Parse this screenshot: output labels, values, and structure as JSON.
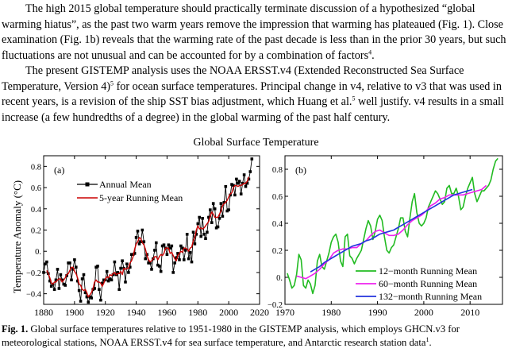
{
  "paragraphs": {
    "p1": {
      "pre": "The high 2015 global temperature should practically terminate discussion of a hypothesized “global warming hiatus”, as the past two warm years remove the impression that warming has plateaued (Fig. 1). Close examination (Fig. 1b) reveals that the warming rate of the past decade is less than in the prior 30 years, but such fluctuations are not unusual and can be accounted for by a combination of factors",
      "ref": "4",
      "post": "."
    },
    "p2": {
      "pre": "The present GISTEMP analysis uses the NOAA ERSST.v4 (Extended Reconstructed Sea Surface Temperature, Version 4)",
      "ref1": "5",
      "mid": " for ocean surface temperatures.  Principal change in v4, relative to v3 that was used in recent years, is a revision of the ship SST bias adjustment, which Huang et al.",
      "ref2": "5",
      "post": " well justify.  v4 results in a small increase (a few hundredths of a degree) in the global warming of the past half century."
    }
  },
  "figure": {
    "title": "Global Surface Temperature",
    "ylabel": "Temperature Anomaly (°C)",
    "panel_a_label": "(a)",
    "panel_b_label": "(b)"
  },
  "caption": {
    "label": "Fig. 1.",
    "text": " Global surface temperatures relative to 1951-1980 in the GISTEMP analysis, which employs GHCN.v3 for meteorological stations, NOAA ERSST.v4 for sea surface temperature, and Antarctic research station data",
    "ref": "1",
    "post": "."
  },
  "chart_data": [
    {
      "type": "line",
      "panel": "(a)",
      "title": "Global Surface Temperature",
      "ylabel": "Temperature Anomaly (°C)",
      "xlim": [
        1880,
        2020
      ],
      "ylim": [
        -0.5,
        0.9
      ],
      "x_ticks": [
        1880,
        1900,
        1920,
        1940,
        1960,
        1980,
        2000,
        2020
      ],
      "y_ticks": [
        -0.4,
        -0.2,
        0.0,
        0.2,
        0.4,
        0.6,
        0.8
      ],
      "y_tick_labels": [
        "−0.4",
        "−0.2",
        "0.",
        "0.2",
        "0.4",
        "0.6",
        "0.8"
      ],
      "legend_position": "top-left",
      "colors": {
        "annual": "#000000",
        "running5": "#cc0000"
      },
      "series": [
        {
          "name": "Annual Mean",
          "marker": "square",
          "x": [
            1880,
            1881,
            1882,
            1883,
            1884,
            1885,
            1886,
            1887,
            1888,
            1889,
            1890,
            1891,
            1892,
            1893,
            1894,
            1895,
            1896,
            1897,
            1898,
            1899,
            1900,
            1901,
            1902,
            1903,
            1904,
            1905,
            1906,
            1907,
            1908,
            1909,
            1910,
            1911,
            1912,
            1913,
            1914,
            1915,
            1916,
            1917,
            1918,
            1919,
            1920,
            1921,
            1922,
            1923,
            1924,
            1925,
            1926,
            1927,
            1928,
            1929,
            1930,
            1931,
            1932,
            1933,
            1934,
            1935,
            1936,
            1937,
            1938,
            1939,
            1940,
            1941,
            1942,
            1943,
            1944,
            1945,
            1946,
            1947,
            1948,
            1949,
            1950,
            1951,
            1952,
            1953,
            1954,
            1955,
            1956,
            1957,
            1958,
            1959,
            1960,
            1961,
            1962,
            1963,
            1964,
            1965,
            1966,
            1967,
            1968,
            1969,
            1970,
            1971,
            1972,
            1973,
            1974,
            1975,
            1976,
            1977,
            1978,
            1979,
            1980,
            1981,
            1982,
            1983,
            1984,
            1985,
            1986,
            1987,
            1988,
            1989,
            1990,
            1991,
            1992,
            1993,
            1994,
            1995,
            1996,
            1997,
            1998,
            1999,
            2000,
            2001,
            2002,
            2003,
            2004,
            2005,
            2006,
            2007,
            2008,
            2009,
            2010,
            2011,
            2012,
            2013,
            2014,
            2015
          ],
          "values": [
            -0.2,
            -0.12,
            -0.1,
            -0.21,
            -0.28,
            -0.33,
            -0.31,
            -0.36,
            -0.27,
            -0.17,
            -0.35,
            -0.22,
            -0.27,
            -0.31,
            -0.32,
            -0.23,
            -0.11,
            -0.11,
            -0.27,
            -0.17,
            -0.08,
            -0.15,
            -0.28,
            -0.37,
            -0.47,
            -0.26,
            -0.22,
            -0.39,
            -0.43,
            -0.48,
            -0.43,
            -0.44,
            -0.36,
            -0.35,
            -0.15,
            -0.14,
            -0.36,
            -0.46,
            -0.3,
            -0.27,
            -0.27,
            -0.19,
            -0.28,
            -0.26,
            -0.27,
            -0.22,
            -0.1,
            -0.22,
            -0.2,
            -0.36,
            -0.16,
            -0.09,
            -0.16,
            -0.29,
            -0.12,
            -0.2,
            -0.15,
            -0.03,
            -0.03,
            -0.02,
            0.13,
            0.19,
            0.07,
            0.09,
            0.2,
            0.09,
            -0.07,
            -0.03,
            -0.11,
            -0.11,
            -0.17,
            -0.07,
            0.01,
            0.08,
            -0.13,
            -0.14,
            -0.19,
            0.05,
            0.06,
            0.03,
            -0.03,
            0.06,
            0.03,
            0.05,
            -0.2,
            -0.11,
            -0.06,
            -0.02,
            -0.08,
            0.05,
            0.03,
            -0.08,
            0.01,
            0.16,
            -0.07,
            -0.01,
            -0.1,
            0.18,
            0.07,
            0.16,
            0.26,
            0.32,
            0.14,
            0.31,
            0.16,
            0.12,
            0.18,
            0.32,
            0.39,
            0.27,
            0.45,
            0.4,
            0.22,
            0.23,
            0.31,
            0.45,
            0.33,
            0.46,
            0.61,
            0.38,
            0.39,
            0.53,
            0.63,
            0.62,
            0.53,
            0.68,
            0.64,
            0.66,
            0.54,
            0.64,
            0.72,
            0.61,
            0.64,
            0.68,
            0.75,
            0.87
          ]
        },
        {
          "name": "5-year Running Mean",
          "x": [
            1882,
            1883,
            1884,
            1885,
            1886,
            1887,
            1888,
            1889,
            1890,
            1891,
            1892,
            1893,
            1894,
            1895,
            1896,
            1897,
            1898,
            1899,
            1900,
            1901,
            1902,
            1903,
            1904,
            1905,
            1906,
            1907,
            1908,
            1909,
            1910,
            1911,
            1912,
            1913,
            1914,
            1915,
            1916,
            1917,
            1918,
            1919,
            1920,
            1921,
            1922,
            1923,
            1924,
            1925,
            1926,
            1927,
            1928,
            1929,
            1930,
            1931,
            1932,
            1933,
            1934,
            1935,
            1936,
            1937,
            1938,
            1939,
            1940,
            1941,
            1942,
            1943,
            1944,
            1945,
            1946,
            1947,
            1948,
            1949,
            1950,
            1951,
            1952,
            1953,
            1954,
            1955,
            1956,
            1957,
            1958,
            1959,
            1960,
            1961,
            1962,
            1963,
            1964,
            1965,
            1966,
            1967,
            1968,
            1969,
            1970,
            1971,
            1972,
            1973,
            1974,
            1975,
            1976,
            1977,
            1978,
            1979,
            1980,
            1981,
            1982,
            1983,
            1984,
            1985,
            1986,
            1987,
            1988,
            1989,
            1990,
            1991,
            1992,
            1993,
            1994,
            1995,
            1996,
            1997,
            1998,
            1999,
            2000,
            2001,
            2002,
            2003,
            2004,
            2005,
            2006,
            2007,
            2008,
            2009,
            2010,
            2011,
            2012,
            2013
          ],
          "values": [
            -0.18,
            -0.21,
            -0.25,
            -0.3,
            -0.31,
            -0.29,
            -0.29,
            -0.27,
            -0.26,
            -0.26,
            -0.29,
            -0.27,
            -0.25,
            -0.22,
            -0.21,
            -0.18,
            -0.15,
            -0.15,
            -0.19,
            -0.21,
            -0.25,
            -0.31,
            -0.32,
            -0.36,
            -0.37,
            -0.36,
            -0.39,
            -0.43,
            -0.41,
            -0.39,
            -0.35,
            -0.29,
            -0.27,
            -0.29,
            -0.29,
            -0.3,
            -0.33,
            -0.3,
            -0.26,
            -0.24,
            -0.25,
            -0.22,
            -0.23,
            -0.21,
            -0.2,
            -0.22,
            -0.21,
            -0.21,
            -0.19,
            -0.22,
            -0.16,
            -0.17,
            -0.16,
            -0.16,
            -0.11,
            -0.09,
            -0.05,
            0.02,
            0.07,
            0.09,
            0.13,
            0.12,
            0.08,
            0.06,
            0.02,
            -0.04,
            -0.08,
            -0.1,
            -0.09,
            -0.07,
            -0.05,
            -0.05,
            -0.08,
            -0.05,
            -0.03,
            -0.04,
            -0.02,
            0.03,
            0.03,
            0.03,
            -0.02,
            -0.01,
            -0.04,
            -0.07,
            -0.09,
            -0.04,
            -0.02,
            0.0,
            -0.01,
            0.03,
            0.03,
            0.02,
            -0.0,
            0.03,
            0.04,
            0.1,
            0.13,
            0.2,
            0.24,
            0.21,
            0.22,
            0.21,
            0.22,
            0.24,
            0.26,
            0.28,
            0.33,
            0.37,
            0.35,
            0.32,
            0.32,
            0.32,
            0.35,
            0.38,
            0.43,
            0.45,
            0.46,
            0.48,
            0.51,
            0.54,
            0.55,
            0.6,
            0.62,
            0.62,
            0.61,
            0.62,
            0.62,
            0.63,
            0.64,
            0.64,
            0.66,
            0.7
          ]
        }
      ]
    },
    {
      "type": "line",
      "panel": "(b)",
      "xlim": [
        1970,
        2017
      ],
      "ylim": [
        -0.2,
        0.9
      ],
      "x_ticks": [
        1970,
        1980,
        1990,
        2000,
        2010
      ],
      "x_tick_labels": [
        "1970",
        "1980",
        "1990",
        "2000",
        "2010"
      ],
      "y_ticks": [
        -0.2,
        0.0,
        0.2,
        0.4,
        0.6,
        0.8
      ],
      "y_tick_labels": [
        "−0.2",
        "0.",
        "0.2",
        "0.4",
        "0.6",
        "0.8"
      ],
      "legend_position": "bottom-right",
      "colors": {
        "m12": "#22bb22",
        "m60": "#ee22ee",
        "m132": "#2233dd"
      },
      "series": [
        {
          "name": "12−month Running Mean",
          "x": [
            1970.5,
            1971.0,
            1971.5,
            1972.0,
            1972.5,
            1973.0,
            1973.5,
            1974.0,
            1974.5,
            1975.0,
            1975.5,
            1976.0,
            1976.5,
            1977.0,
            1977.5,
            1978.0,
            1978.5,
            1979.0,
            1979.5,
            1980.0,
            1980.5,
            1981.0,
            1981.5,
            1982.0,
            1982.5,
            1983.0,
            1983.5,
            1984.0,
            1984.5,
            1985.0,
            1985.5,
            1986.0,
            1986.5,
            1987.0,
            1987.5,
            1988.0,
            1988.5,
            1989.0,
            1989.5,
            1990.0,
            1990.5,
            1991.0,
            1991.5,
            1992.0,
            1992.5,
            1993.0,
            1993.5,
            1994.0,
            1994.5,
            1995.0,
            1995.5,
            1996.0,
            1996.5,
            1997.0,
            1997.5,
            1998.0,
            1998.5,
            1999.0,
            1999.5,
            2000.0,
            2000.5,
            2001.0,
            2001.5,
            2002.0,
            2002.5,
            2003.0,
            2003.5,
            2004.0,
            2004.5,
            2005.0,
            2005.5,
            2006.0,
            2006.5,
            2007.0,
            2007.5,
            2008.0,
            2008.5,
            2009.0,
            2009.5,
            2010.0,
            2010.5,
            2011.0,
            2011.5,
            2012.0,
            2012.5,
            2013.0,
            2013.5,
            2014.0,
            2014.5,
            2015.0,
            2015.5,
            2016.0
          ],
          "values": [
            0.03,
            -0.02,
            -0.08,
            -0.06,
            0.02,
            0.17,
            0.13,
            -0.06,
            -0.08,
            -0.02,
            -0.05,
            -0.12,
            -0.06,
            0.12,
            0.17,
            0.08,
            0.06,
            0.12,
            0.18,
            0.26,
            0.3,
            0.32,
            0.26,
            0.12,
            0.08,
            0.3,
            0.32,
            0.16,
            0.14,
            0.1,
            0.14,
            0.17,
            0.2,
            0.28,
            0.36,
            0.42,
            0.38,
            0.28,
            0.34,
            0.43,
            0.46,
            0.42,
            0.3,
            0.2,
            0.18,
            0.22,
            0.24,
            0.3,
            0.36,
            0.44,
            0.44,
            0.34,
            0.3,
            0.44,
            0.56,
            0.62,
            0.48,
            0.4,
            0.38,
            0.4,
            0.44,
            0.52,
            0.56,
            0.6,
            0.64,
            0.62,
            0.58,
            0.54,
            0.56,
            0.66,
            0.68,
            0.62,
            0.62,
            0.66,
            0.6,
            0.5,
            0.52,
            0.6,
            0.66,
            0.7,
            0.74,
            0.62,
            0.56,
            0.6,
            0.64,
            0.64,
            0.66,
            0.68,
            0.72,
            0.8,
            0.86,
            0.88
          ]
        },
        {
          "name": "60−month Running Mean",
          "x": [
            1972.5,
            1973.5,
            1974.5,
            1975.5,
            1976.5,
            1977.5,
            1978.5,
            1979.5,
            1980.5,
            1981.5,
            1982.5,
            1983.5,
            1984.5,
            1985.5,
            1986.5,
            1987.5,
            1988.5,
            1989.5,
            1990.5,
            1991.5,
            1992.5,
            1993.5,
            1994.5,
            1995.5,
            1996.5,
            1997.5,
            1998.5,
            1999.5,
            2000.5,
            2001.5,
            2002.5,
            2003.5,
            2004.5,
            2005.5,
            2006.5,
            2007.5,
            2008.5,
            2009.5,
            2010.5,
            2011.5,
            2012.5,
            2013.5
          ],
          "values": [
            0.01,
            0.0,
            -0.01,
            0.01,
            0.03,
            0.06,
            0.1,
            0.13,
            0.18,
            0.2,
            0.21,
            0.21,
            0.22,
            0.22,
            0.25,
            0.27,
            0.31,
            0.34,
            0.35,
            0.33,
            0.31,
            0.31,
            0.32,
            0.35,
            0.39,
            0.42,
            0.44,
            0.46,
            0.49,
            0.53,
            0.55,
            0.58,
            0.59,
            0.61,
            0.61,
            0.61,
            0.61,
            0.62,
            0.63,
            0.64,
            0.65,
            0.68
          ]
        },
        {
          "name": "132−month Running Mean",
          "x": [
            1975.5,
            1976.5,
            1977.5,
            1978.5,
            1979.5,
            1980.5,
            1981.5,
            1982.5,
            1983.5,
            1984.5,
            1985.5,
            1986.5,
            1987.5,
            1988.5,
            1989.5,
            1990.5,
            1991.5,
            1992.5,
            1993.5,
            1994.5,
            1995.5,
            1996.5,
            1997.5,
            1998.5,
            1999.5,
            2000.5,
            2001.5,
            2002.5,
            2003.5,
            2004.5,
            2005.5,
            2006.5,
            2007.5,
            2008.5,
            2009.5,
            2010.5
          ],
          "values": [
            0.04,
            0.06,
            0.08,
            0.11,
            0.13,
            0.15,
            0.17,
            0.19,
            0.21,
            0.23,
            0.24,
            0.25,
            0.27,
            0.28,
            0.3,
            0.32,
            0.33,
            0.34,
            0.35,
            0.37,
            0.39,
            0.41,
            0.43,
            0.45,
            0.47,
            0.49,
            0.51,
            0.53,
            0.55,
            0.57,
            0.59,
            0.61,
            0.62,
            0.63,
            0.64,
            0.65
          ]
        }
      ]
    }
  ]
}
